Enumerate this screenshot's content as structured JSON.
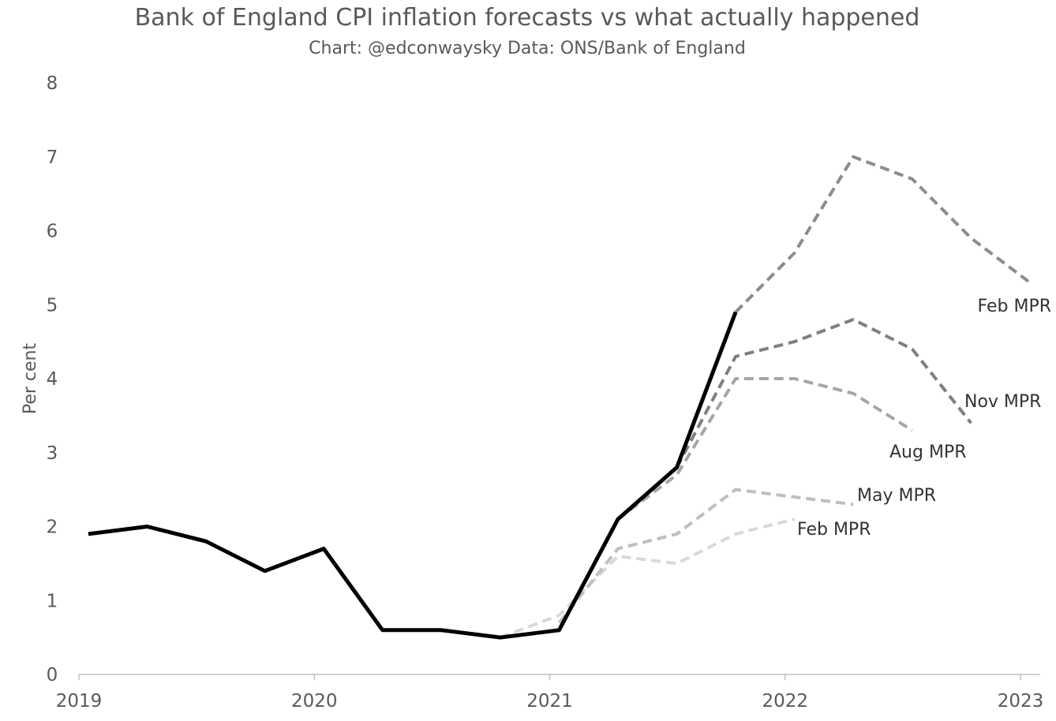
{
  "chart_data": {
    "type": "line",
    "title": "Bank of England CPI inflation forecasts vs what actually happened",
    "subtitle": "Chart: @edconwaysky Data: ONS/Bank of England",
    "xlabel": "",
    "ylabel": "Per cent",
    "x_ticks": [
      "2019",
      "2020",
      "2021",
      "2022",
      "2023"
    ],
    "y_ticks": [
      "0",
      "1",
      "2",
      "3",
      "4",
      "5",
      "6",
      "7",
      "8"
    ],
    "xlim": [
      2019.0,
      2023.0
    ],
    "ylim": [
      0,
      8
    ],
    "grid": false,
    "legend": "none",
    "series": [
      {
        "style": "solid",
        "color": "#000000",
        "x": [
          2019.04,
          2019.29,
          2019.54,
          2019.79,
          2020.04,
          2020.29,
          2020.54,
          2020.79,
          2021.04,
          2021.29,
          2021.54,
          2021.79
        ],
        "values": [
          1.9,
          2.0,
          1.8,
          1.4,
          1.7,
          0.6,
          0.6,
          0.5,
          0.6,
          2.1,
          2.8,
          4.9
        ]
      },
      {
        "name": "Feb MPR",
        "style": "dashed",
        "color": "#d9d9d9",
        "x": [
          2020.79,
          2021.04,
          2021.29,
          2021.54,
          2021.79,
          2022.04
        ],
        "values": [
          0.5,
          0.8,
          1.6,
          1.5,
          1.9,
          2.1
        ]
      },
      {
        "name": "May MPR",
        "style": "dashed",
        "color": "#bfbfbf",
        "x": [
          2021.04,
          2021.29,
          2021.54,
          2021.79,
          2022.04,
          2022.29
        ],
        "values": [
          0.7,
          1.7,
          1.9,
          2.5,
          2.4,
          2.3
        ]
      },
      {
        "name": "Aug MPR",
        "style": "dashed",
        "color": "#a6a6a6",
        "x": [
          2021.29,
          2021.54,
          2021.79,
          2022.04,
          2022.29,
          2022.54
        ],
        "values": [
          2.1,
          2.7,
          4.0,
          4.0,
          3.8,
          3.3
        ]
      },
      {
        "name": "Nov MPR",
        "style": "dashed",
        "color": "#7f7f7f",
        "x": [
          2021.54,
          2021.79,
          2022.04,
          2022.29,
          2022.54,
          2022.79
        ],
        "values": [
          2.8,
          4.3,
          4.5,
          4.8,
          4.4,
          3.4
        ]
      },
      {
        "name": "Feb MPR",
        "style": "dashed",
        "color": "#8c8c8c",
        "x": [
          2021.79,
          2022.04,
          2022.29,
          2022.54,
          2022.79,
          2023.04
        ],
        "values": [
          4.9,
          5.7,
          7.0,
          6.7,
          5.9,
          5.3
        ]
      }
    ]
  }
}
